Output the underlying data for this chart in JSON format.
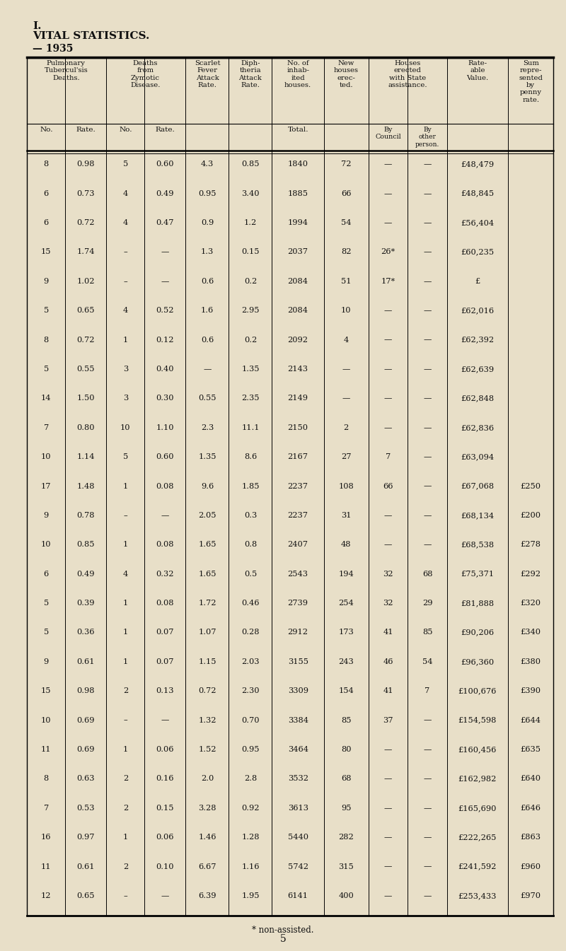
{
  "title_roman": "I.",
  "title_main": "VITAL STATISTICS.",
  "title_year": "— 1935",
  "bg_color": "#e8dfc8",
  "text_color": "#111111",
  "footnote": "* non-assisted.",
  "page_number": "5",
  "rows": [
    [
      "8",
      "0.98",
      "5",
      "0.60",
      "4.3",
      "0.85",
      "1840",
      "72",
      "—",
      "—",
      "£48,479",
      ""
    ],
    [
      "6",
      "0.73",
      "4",
      "0.49",
      "0.95",
      "3.40",
      "1885",
      "66",
      "—",
      "—",
      "£48,845",
      ""
    ],
    [
      "6",
      "0.72",
      "4",
      "0.47",
      "0.9",
      "1.2",
      "1994",
      "54",
      "—",
      "—",
      "£56,404",
      ""
    ],
    [
      "15",
      "1.74",
      "–",
      "—",
      "1.3",
      "0.15",
      "2037",
      "82",
      "26*",
      "—",
      "£60,235",
      ""
    ],
    [
      "9",
      "1.02",
      "–",
      "—",
      "0.6",
      "0.2",
      "2084",
      "51",
      "17*",
      "—",
      "£",
      ""
    ],
    [
      "5",
      "0.65",
      "4",
      "0.52",
      "1.6",
      "2.95",
      "2084",
      "10",
      "—",
      "—",
      "£62,016",
      ""
    ],
    [
      "8",
      "0.72",
      "1",
      "0.12",
      "0.6",
      "0.2",
      "2092",
      "4",
      "—",
      "—",
      "£62,392",
      ""
    ],
    [
      "5",
      "0.55",
      "3",
      "0.40",
      "—",
      "1.35",
      "2143",
      "—",
      "—",
      "—",
      "£62,639",
      ""
    ],
    [
      "14",
      "1.50",
      "3",
      "0.30",
      "0.55",
      "2.35",
      "2149",
      "—",
      "—",
      "—",
      "£62,848",
      ""
    ],
    [
      "7",
      "0.80",
      "10",
      "1.10",
      "2.3",
      "11.1",
      "2150",
      "2",
      "—",
      "—",
      "£62,836",
      ""
    ],
    [
      "10",
      "1.14",
      "5",
      "0.60",
      "1.35",
      "8.6",
      "2167",
      "27",
      "7",
      "—",
      "£63,094",
      ""
    ],
    [
      "17",
      "1.48",
      "1",
      "0.08",
      "9.6",
      "1.85",
      "2237",
      "108",
      "66",
      "—",
      "£67,068",
      "£250"
    ],
    [
      "9",
      "0.78",
      "–",
      "—",
      "2.05",
      "0.3",
      "2237",
      "31",
      "—",
      "—",
      "£68,134",
      "£200"
    ],
    [
      "10",
      "0.85",
      "1",
      "0.08",
      "1.65",
      "0.8",
      "2407",
      "48",
      "—",
      "—",
      "£68,538",
      "£278"
    ],
    [
      "6",
      "0.49",
      "4",
      "0.32",
      "1.65",
      "0.5",
      "2543",
      "194",
      "32",
      "68",
      "£75,371",
      "£292"
    ],
    [
      "5",
      "0.39",
      "1",
      "0.08",
      "1.72",
      "0.46",
      "2739",
      "254",
      "32",
      "29",
      "£81,888",
      "£320"
    ],
    [
      "5",
      "0.36",
      "1",
      "0.07",
      "1.07",
      "0.28",
      "2912",
      "173",
      "41",
      "85",
      "£90,206",
      "£340"
    ],
    [
      "9",
      "0.61",
      "1",
      "0.07",
      "1.15",
      "2.03",
      "3155",
      "243",
      "46",
      "54",
      "£96,360",
      "£380"
    ],
    [
      "15",
      "0.98",
      "2",
      "0.13",
      "0.72",
      "2.30",
      "3309",
      "154",
      "41",
      "7",
      "£100,676",
      "£390"
    ],
    [
      "10",
      "0.69",
      "–",
      "—",
      "1.32",
      "0.70",
      "3384",
      "85",
      "37",
      "—",
      "£154,598",
      "£644"
    ],
    [
      "11",
      "0.69",
      "1",
      "0.06",
      "1.52",
      "0.95",
      "3464",
      "80",
      "—",
      "—",
      "£160,456",
      "£635"
    ],
    [
      "8",
      "0.63",
      "2",
      "0.16",
      "2.0",
      "2.8",
      "3532",
      "68",
      "—",
      "—",
      "£162,982",
      "£640"
    ],
    [
      "7",
      "0.53",
      "2",
      "0.15",
      "3.28",
      "0.92",
      "3613",
      "95",
      "—",
      "—",
      "£165,690",
      "£646"
    ],
    [
      "16",
      "0.97",
      "1",
      "0.06",
      "1.46",
      "1.28",
      "5440",
      "282",
      "—",
      "—",
      "£222,265",
      "£863"
    ],
    [
      "11",
      "0.61",
      "2",
      "0.10",
      "6.67",
      "1.16",
      "5742",
      "315",
      "—",
      "—",
      "£241,592",
      "£960"
    ],
    [
      "12",
      "0.65",
      "–",
      "—",
      "6.39",
      "1.95",
      "6141",
      "400",
      "—",
      "—",
      "£253,433",
      "£970"
    ]
  ]
}
